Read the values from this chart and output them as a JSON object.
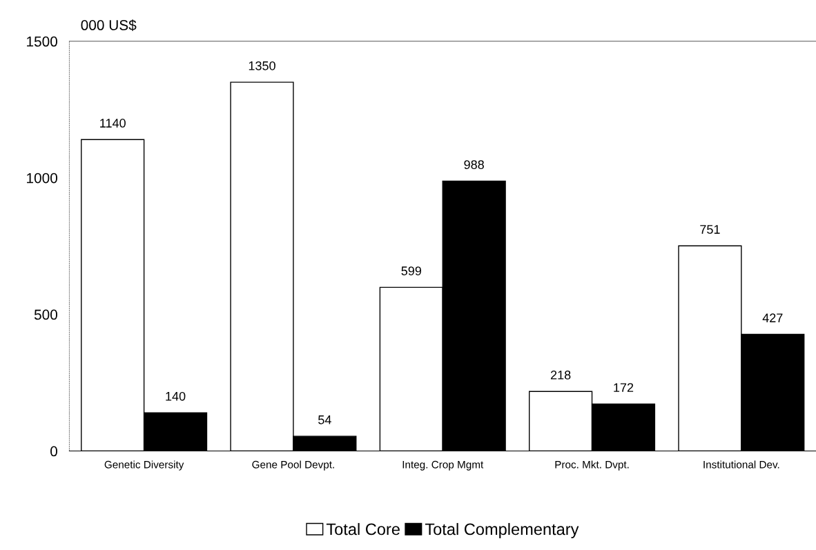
{
  "chart_data": {
    "type": "bar",
    "ylabel": "000 US$",
    "categories": [
      "Genetic Diversity",
      "Gene Pool Devpt.",
      "Integ. Crop Mgmt",
      "Proc. Mkt. Dvpt.",
      "Institutional Dev."
    ],
    "series": [
      {
        "name": "Total Core",
        "color": "#ffffff",
        "values": [
          1140,
          1350,
          599,
          218,
          751
        ]
      },
      {
        "name": "Total Complementary",
        "color": "#000000",
        "values": [
          140,
          54,
          988,
          172,
          427
        ]
      }
    ],
    "ylim": [
      0,
      1500
    ],
    "yticks": [
      0,
      500,
      1000,
      1500
    ],
    "data_labels": true,
    "legend": "bottom",
    "grid": false
  }
}
